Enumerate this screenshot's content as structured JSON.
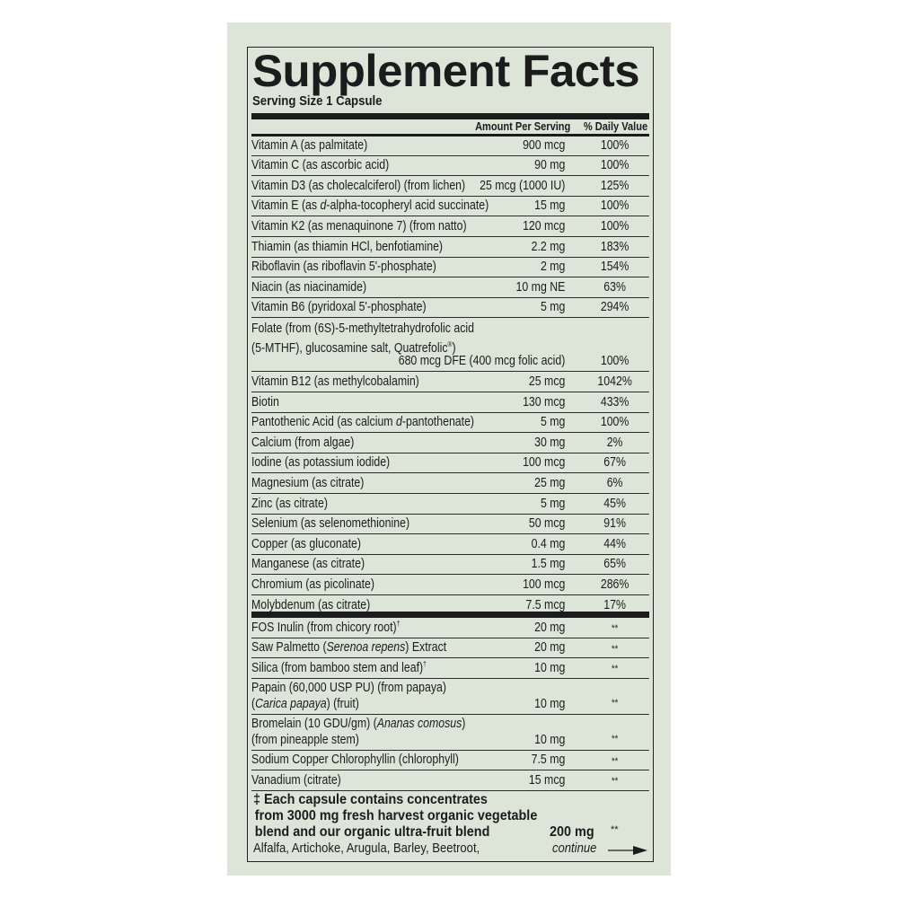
{
  "label": {
    "title": "Supplement Facts",
    "serving_size": "Serving Size 1 Capsule",
    "header_amount": "Amount Per Serving",
    "header_dv": "% Daily Value",
    "vitamins": [
      {
        "name": [
          [
            {
              "t": "Vitamin A (as palmitate)"
            }
          ]
        ],
        "amount": "900 mcg",
        "dv": "100%"
      },
      {
        "name": [
          [
            {
              "t": "Vitamin C (as ascorbic acid)"
            }
          ]
        ],
        "amount": "90 mg",
        "dv": "100%"
      },
      {
        "name": [
          [
            {
              "t": "Vitamin D3 (as cholecalciferol) (from lichen)"
            }
          ]
        ],
        "amount": "25 mcg (1000 IU)",
        "dv": "125%"
      },
      {
        "name": [
          [
            {
              "t": "Vitamin E (as "
            },
            {
              "t": "d",
              "i": true
            },
            {
              "t": "-alpha-tocopheryl acid succinate)"
            }
          ]
        ],
        "amount": "15 mg",
        "dv": "100%"
      },
      {
        "name": [
          [
            {
              "t": "Vitamin K2 (as menaquinone 7) (from natto)"
            }
          ]
        ],
        "amount": "120 mcg",
        "dv": "100%"
      },
      {
        "name": [
          [
            {
              "t": "Thiamin (as thiamin HCl, benfotiamine)"
            }
          ]
        ],
        "amount": "2.2 mg",
        "dv": "183%"
      },
      {
        "name": [
          [
            {
              "t": "Riboflavin (as riboflavin 5'-phosphate)"
            }
          ]
        ],
        "amount": "2 mg",
        "dv": "154%"
      },
      {
        "name": [
          [
            {
              "t": "Niacin (as niacinamide)"
            }
          ]
        ],
        "amount": "10 mg NE",
        "dv": "63%"
      },
      {
        "name": [
          [
            {
              "t": "Vitamin B6 (pyridoxal 5'-phosphate)"
            }
          ]
        ],
        "amount": "5 mg",
        "dv": "294%"
      },
      {
        "name": [
          [
            {
              "t": "Folate (from (6S)-5-methyltetrahydrofolic acid"
            }
          ],
          [
            {
              "t": "(5-MTHF), glucosamine salt, Quatrefolic"
            },
            {
              "t": "®",
              "sup": true
            },
            {
              "t": ")"
            }
          ]
        ],
        "amount": "680 mcg DFE  (400 mcg folic acid)",
        "dv": "100%"
      },
      {
        "name": [
          [
            {
              "t": "Vitamin B12 (as methylcobalamin)"
            }
          ]
        ],
        "amount": "25 mcg",
        "dv": "1042%"
      },
      {
        "name": [
          [
            {
              "t": "Biotin"
            }
          ]
        ],
        "amount": "130 mcg",
        "dv": "433%"
      },
      {
        "name": [
          [
            {
              "t": "Pantothenic Acid (as calcium "
            },
            {
              "t": "d",
              "i": true
            },
            {
              "t": "-pantothenate)"
            }
          ]
        ],
        "amount": "5 mg",
        "dv": "100%"
      },
      {
        "name": [
          [
            {
              "t": "Calcium (from algae)"
            }
          ]
        ],
        "amount": "30 mg",
        "dv": "2%"
      },
      {
        "name": [
          [
            {
              "t": "Iodine (as potassium iodide)"
            }
          ]
        ],
        "amount": "100 mcg",
        "dv": "67%"
      },
      {
        "name": [
          [
            {
              "t": "Magnesium (as citrate)"
            }
          ]
        ],
        "amount": "25 mg",
        "dv": "6%"
      },
      {
        "name": [
          [
            {
              "t": "Zinc (as citrate)"
            }
          ]
        ],
        "amount": "5 mg",
        "dv": "45%"
      },
      {
        "name": [
          [
            {
              "t": "Selenium (as selenomethionine)"
            }
          ]
        ],
        "amount": "50 mcg",
        "dv": "91%"
      },
      {
        "name": [
          [
            {
              "t": "Copper (as gluconate)"
            }
          ]
        ],
        "amount": "0.4 mg",
        "dv": "44%"
      },
      {
        "name": [
          [
            {
              "t": "Manganese (as citrate)"
            }
          ]
        ],
        "amount": "1.5 mg",
        "dv": "65%"
      },
      {
        "name": [
          [
            {
              "t": "Chromium (as picolinate)"
            }
          ]
        ],
        "amount": "100 mcg",
        "dv": "286%"
      },
      {
        "name": [
          [
            {
              "t": "Molybdenum (as citrate)"
            }
          ]
        ],
        "amount": "7.5 mcg",
        "dv": "17%"
      }
    ],
    "others": [
      {
        "name": [
          [
            {
              "t": "FOS Inulin (from chicory root)"
            },
            {
              "t": "†",
              "sup": true
            }
          ]
        ],
        "amount": "20 mg",
        "dv": "**"
      },
      {
        "name": [
          [
            {
              "t": "Saw Palmetto ("
            },
            {
              "t": "Serenoa repens",
              "i": true
            },
            {
              "t": ") Extract"
            }
          ]
        ],
        "amount": "20 mg",
        "dv": "**"
      },
      {
        "name": [
          [
            {
              "t": "Silica (from bamboo stem and leaf)"
            },
            {
              "t": "†",
              "sup": true
            }
          ]
        ],
        "amount": "10 mg",
        "dv": "**"
      },
      {
        "name": [
          [
            {
              "t": "Papain (60,000 USP PU) (from papaya)"
            }
          ],
          [
            {
              "t": " ("
            },
            {
              "t": "Carica papaya",
              "i": true
            },
            {
              "t": ") (fruit)"
            }
          ]
        ],
        "amount": "10 mg",
        "dv": "**"
      },
      {
        "name": [
          [
            {
              "t": "Bromelain (10 GDU/gm) ("
            },
            {
              "t": "Ananas comosus",
              "i": true
            },
            {
              "t": ")"
            }
          ],
          [
            {
              "t": " (from pineapple stem)"
            }
          ]
        ],
        "amount": "10 mg",
        "dv": "**"
      },
      {
        "name": [
          [
            {
              "t": "Sodium Copper Chlorophyllin (chlorophyll)"
            }
          ]
        ],
        "amount": "7.5 mg",
        "dv": "**"
      },
      {
        "name": [
          [
            {
              "t": "Vanadium (citrate)"
            }
          ]
        ],
        "amount": "15 mcg",
        "dv": "**"
      }
    ],
    "footnote": {
      "lines": [
        "‡ Each capsule contains concentrates",
        "from 3000 mg fresh harvest organic vegetable",
        "blend and our organic ultra-fruit blend"
      ],
      "amount": "200 mg",
      "dv": "**",
      "list_start": "Alfalfa, Artichoke, Arugula, Barley, Beetroot,",
      "continue_label": "continue"
    }
  },
  "colors": {
    "background": "#dde5d9",
    "ink": "#1c1c1c"
  },
  "icons": {
    "continue": "arrow-right-icon"
  }
}
